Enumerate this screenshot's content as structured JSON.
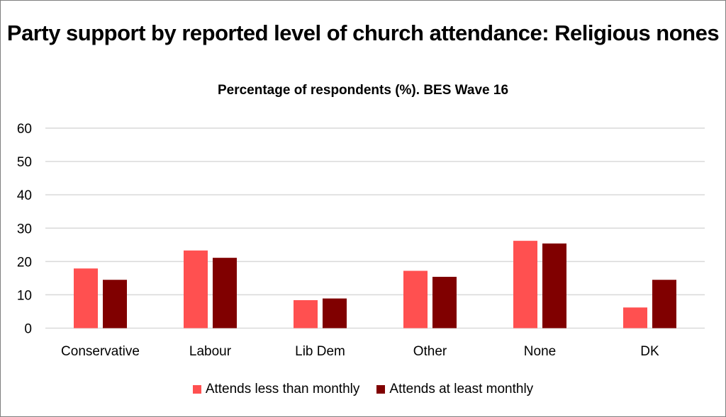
{
  "chart_data": {
    "type": "bar",
    "title": "Party support by reported level of church attendance: Religious nones",
    "subtitle": "Percentage of respondents (%). BES  Wave 16",
    "categories": [
      "Conservative",
      "Labour",
      "Lib Dem",
      "Other",
      "None",
      "DK"
    ],
    "series": [
      {
        "name": "Attends less than monthly",
        "color": "#ff5050",
        "values": [
          17.9,
          23.3,
          8.4,
          17.2,
          26.2,
          6.2
        ]
      },
      {
        "name": "Attends at least monthly",
        "color": "#800000",
        "values": [
          14.5,
          21.1,
          8.9,
          15.4,
          25.4,
          14.5
        ]
      }
    ],
    "ylim": [
      0,
      60
    ],
    "yticks": [
      0,
      10,
      20,
      30,
      40,
      50,
      60
    ],
    "grid": true,
    "legend": "bottom"
  }
}
